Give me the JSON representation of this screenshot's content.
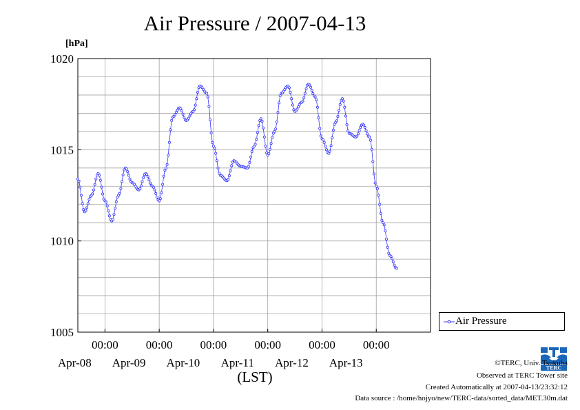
{
  "title": "Air Pressure / 2007-04-13",
  "chart_data": {
    "type": "line",
    "title": "Air Pressure / 2007-04-13",
    "ylabel": "[hPa]",
    "xlabel": "(LST)",
    "ylim": [
      1005,
      1020
    ],
    "yticks": [
      "1005",
      "1010",
      "1015",
      "1020"
    ],
    "xlim": [
      "2007-04-07 12:00",
      "2007-04-14 00:00"
    ],
    "xticks": [
      {
        "time": "00:00",
        "date": "Apr-08"
      },
      {
        "time": "00:00",
        "date": "Apr-09"
      },
      {
        "time": "00:00",
        "date": "Apr-10"
      },
      {
        "time": "00:00",
        "date": "Apr-11"
      },
      {
        "time": "00:00",
        "date": "Apr-12"
      },
      {
        "time": "00:00",
        "date": "Apr-13"
      }
    ],
    "grid": true,
    "legend_position": "bottom-right, outside",
    "series": [
      {
        "name": "Air Pressure",
        "color": "#3333ff",
        "x": [
          "2007-04-07 12:00",
          "2007-04-07 15:00",
          "2007-04-07 18:00",
          "2007-04-07 21:00",
          "2007-04-08 00:00",
          "2007-04-08 03:00",
          "2007-04-08 06:00",
          "2007-04-08 09:00",
          "2007-04-08 12:00",
          "2007-04-08 15:00",
          "2007-04-08 18:00",
          "2007-04-08 21:00",
          "2007-04-09 00:00",
          "2007-04-09 03:00",
          "2007-04-09 06:00",
          "2007-04-09 09:00",
          "2007-04-09 12:00",
          "2007-04-09 15:00",
          "2007-04-09 18:00",
          "2007-04-09 21:00",
          "2007-04-10 00:00",
          "2007-04-10 03:00",
          "2007-04-10 06:00",
          "2007-04-10 09:00",
          "2007-04-10 12:00",
          "2007-04-10 15:00",
          "2007-04-10 18:00",
          "2007-04-10 21:00",
          "2007-04-11 00:00",
          "2007-04-11 03:00",
          "2007-04-11 06:00",
          "2007-04-11 09:00",
          "2007-04-11 12:00",
          "2007-04-11 15:00",
          "2007-04-11 18:00",
          "2007-04-11 21:00",
          "2007-04-12 00:00",
          "2007-04-12 03:00",
          "2007-04-12 06:00",
          "2007-04-12 09:00",
          "2007-04-12 12:00",
          "2007-04-12 15:00",
          "2007-04-12 18:00",
          "2007-04-12 21:00",
          "2007-04-13 00:00",
          "2007-04-13 03:00",
          "2007-04-13 06:00",
          "2007-04-13 09:00",
          "2007-04-13 12:00",
          "2007-04-13 15:00",
          "2007-04-13 18:00",
          "2007-04-13 21:00",
          "2007-04-13 23:30"
        ],
        "values": [
          1013.4,
          1011.6,
          1012.5,
          1013.7,
          1012.2,
          1011.1,
          1012.5,
          1014.0,
          1013.2,
          1012.8,
          1013.7,
          1013.0,
          1012.2,
          1014.0,
          1016.8,
          1017.3,
          1016.6,
          1017.1,
          1018.5,
          1018.1,
          1015.2,
          1013.6,
          1013.3,
          1014.4,
          1014.1,
          1014.0,
          1015.2,
          1016.7,
          1014.7,
          1016.0,
          1018.1,
          1018.5,
          1017.1,
          1017.6,
          1018.6,
          1017.9,
          1015.6,
          1014.8,
          1016.5,
          1017.8,
          1015.9,
          1015.7,
          1016.4,
          1015.7,
          1013.0,
          1011.0,
          1009.2,
          1008.5,
          null,
          null,
          null,
          null,
          null
        ]
      }
    ]
  },
  "legend": {
    "label": "Air Pressure"
  },
  "footer": {
    "copyright": "©TERC, Univ. Tsukuba",
    "site": "Observed at TERC Tower site",
    "created": "Created Automatically at 2007-04-13/23:32:12",
    "source": "Data source : /home/hojyo/new/TERC-data/sorted_data/MET.30m.dat"
  },
  "logo": {
    "text": "TERC",
    "color": "#1a66b8"
  }
}
